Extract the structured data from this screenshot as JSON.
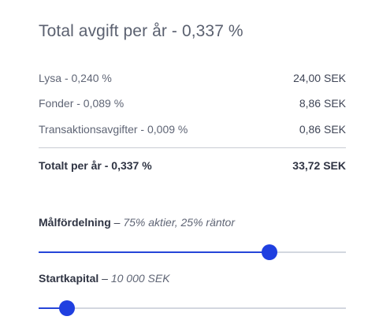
{
  "header": {
    "title": "Total avgift per år - 0,337 %"
  },
  "fees": [
    {
      "label": "Lysa - 0,240 %",
      "value": "24,00 SEK"
    },
    {
      "label": "Fonder - 0,089 %",
      "value": "8,86 SEK"
    },
    {
      "label": "Transaktionsavgifter - 0,009 %",
      "value": "0,86 SEK"
    }
  ],
  "total": {
    "label": "Totalt per år - 0,337 %",
    "value": "33,72 SEK"
  },
  "sliders": {
    "allocation": {
      "name": "Målfördelning",
      "separator": " – ",
      "detail": "75% aktier, 25% räntor",
      "level": 0.75
    },
    "capital": {
      "name": "Startkapital",
      "separator": " – ",
      "detail": "10 000 SEK",
      "level": 0.092
    }
  },
  "colors": {
    "accent": "#1f3fe0",
    "track": "#d3d7df",
    "divider": "#c8ccd4"
  }
}
